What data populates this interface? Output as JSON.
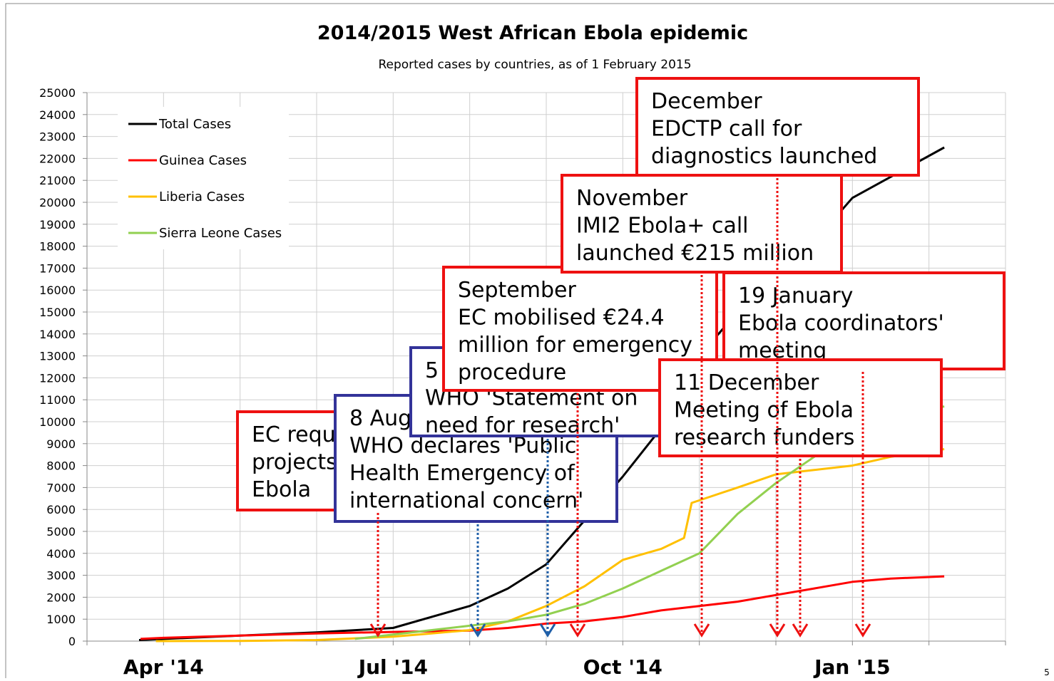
{
  "chart_data": {
    "type": "line",
    "title": "2014/2015 West African Ebola epidemic",
    "subtitle": "Reported cases by countries, as of 1 February 2015",
    "xlim": [
      0,
      12
    ],
    "xgrid": [
      0,
      1,
      2,
      3,
      4,
      5,
      6,
      7,
      8,
      9,
      10,
      11,
      12
    ],
    "xticks": [
      {
        "value": 1,
        "label": "Apr '14"
      },
      {
        "value": 4,
        "label": "Jul '14"
      },
      {
        "value": 7,
        "label": "Oct '14"
      },
      {
        "value": 10,
        "label": "Jan '15"
      }
    ],
    "ylim": [
      0,
      25000
    ],
    "yticks": [
      0,
      1000,
      2000,
      3000,
      4000,
      5000,
      6000,
      7000,
      8000,
      9000,
      10000,
      11000,
      12000,
      13000,
      14000,
      15000,
      16000,
      17000,
      18000,
      19000,
      20000,
      21000,
      22000,
      23000,
      24000,
      25000
    ],
    "grid": true,
    "legend": "upper left",
    "series": [
      {
        "name": "Total Cases",
        "color": "#000000",
        "x": [
          0.68,
          1,
          2,
          3,
          4,
          5,
          5.5,
          6,
          6.5,
          7,
          7.5,
          8,
          9,
          9.85,
          10,
          11.2
        ],
        "values": [
          50,
          100,
          250,
          400,
          600,
          1600,
          2400,
          3500,
          5500,
          7500,
          9700,
          13000,
          17000,
          19600,
          20200,
          22500
        ]
      },
      {
        "name": "Guinea Cases",
        "color": "#ff0000",
        "x": [
          0.7,
          1,
          2,
          3,
          4,
          5,
          5.5,
          6,
          6.5,
          7,
          7.5,
          8,
          8.5,
          9,
          9.5,
          10,
          10.5,
          11.2
        ],
        "values": [
          100,
          150,
          250,
          350,
          420,
          480,
          600,
          800,
          900,
          1100,
          1400,
          1600,
          1800,
          2100,
          2400,
          2700,
          2850,
          2950
        ]
      },
      {
        "name": "Liberia Cases",
        "color": "#ffc000",
        "x": [
          0.9,
          2,
          3,
          4,
          4.5,
          5,
          5.5,
          6,
          6.5,
          7,
          7.5,
          7.8,
          7.9,
          8.5,
          9,
          9.5,
          10,
          10.5,
          11.2
        ],
        "values": [
          0,
          10,
          50,
          200,
          350,
          500,
          900,
          1600,
          2500,
          3700,
          4200,
          4700,
          6300,
          7000,
          7600,
          7800,
          8000,
          8400,
          8750
        ]
      },
      {
        "name": "Sierra Leone Cases",
        "color": "#92d050",
        "x": [
          3.5,
          4,
          5,
          5.5,
          6,
          6.5,
          7,
          7.5,
          8,
          8.5,
          9,
          9.5,
          10,
          10.5,
          11.2
        ],
        "values": [
          100,
          300,
          700,
          900,
          1200,
          1700,
          2400,
          3200,
          4000,
          5800,
          7200,
          8400,
          9500,
          10000,
          10700
        ]
      }
    ]
  },
  "annotations": [
    {
      "border": "#ee1111",
      "lines": [
        "EC requ",
        "projects",
        "Ebola"
      ]
    },
    {
      "border": "#333399",
      "lines": [
        "8 Aug",
        "WHO declares 'Public",
        "Health Emergency of",
        "international concern'"
      ]
    },
    {
      "border": "#333399",
      "lines": [
        "5",
        "WHO 'Statement on",
        "need for research'"
      ]
    },
    {
      "border": "#ee1111",
      "lines": [
        "September",
        "EC mobilised €24.4",
        "million for emergency",
        "procedure"
      ]
    },
    {
      "border": "#ee1111",
      "lines": [
        "November",
        "IMI2 Ebola+ call",
        "launched €215 million"
      ]
    },
    {
      "border": "#ee1111",
      "lines": [
        "December",
        "EDCTP call for",
        "diagnostics launched"
      ]
    },
    {
      "border": "#ee1111",
      "lines": [
        "19 January",
        "Ebola coordinators'",
        "meeting"
      ]
    },
    {
      "border": "#ee1111",
      "lines": [
        "11 December",
        "Meeting of Ebola",
        "research funders"
      ]
    }
  ],
  "page_number": "5"
}
